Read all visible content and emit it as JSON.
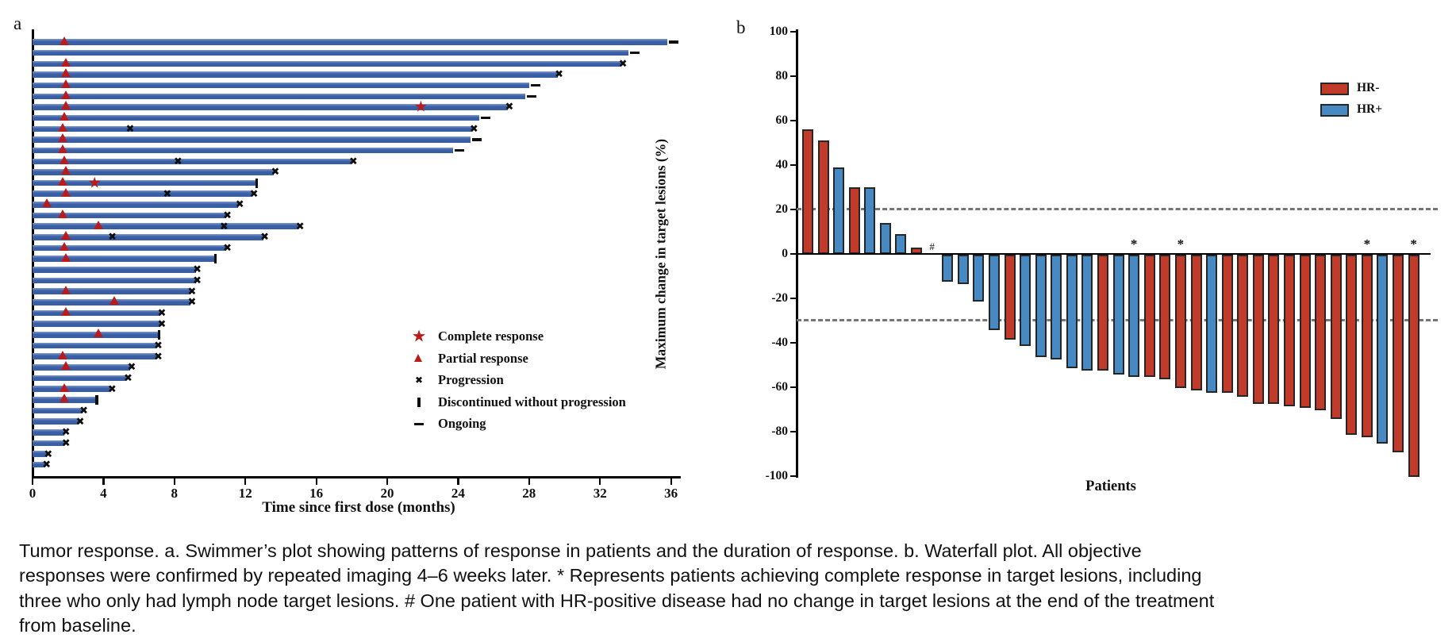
{
  "caption": "Tumor response. a. Swimmer’s plot showing patterns of response in patients and the duration of response. b. Waterfall plot. All objective responses were confirmed by repeated imaging 4–6 weeks later. * Represents patients achieving complete response in target lesions, including three who only had lymph node target lesions. # One patient with HR-positive disease had no change in target lesions at the end of the treatment from baseline.",
  "chart_data": [
    {
      "type": "swimmer",
      "panel": "a",
      "xlabel": "Time since first dose (months)",
      "xticks": [
        0,
        4,
        8,
        12,
        16,
        20,
        24,
        28,
        32,
        36
      ],
      "xlim": [
        0,
        36.5
      ],
      "bar_color": "#3a5fa5",
      "marker_color": "#b91c1c",
      "legend": [
        {
          "marker": "star",
          "label": "Complete response"
        },
        {
          "marker": "triangle",
          "label": "Partial response"
        },
        {
          "marker": "x",
          "label": "Progression"
        },
        {
          "marker": "bar",
          "label": "Discontinued without progression"
        },
        {
          "marker": "dash",
          "label": "Ongoing"
        }
      ],
      "patients": [
        {
          "end": 35.8,
          "marker": "ongoing",
          "pr": 1.8
        },
        {
          "end": 33.6,
          "marker": "ongoing"
        },
        {
          "end": 33.2,
          "marker": "progression",
          "pr": 1.9
        },
        {
          "end": 29.6,
          "marker": "progression",
          "pr": 1.9
        },
        {
          "end": 28.0,
          "marker": "ongoing",
          "pr": 1.9
        },
        {
          "end": 27.8,
          "marker": "ongoing",
          "pr": 1.9
        },
        {
          "end": 26.8,
          "marker": "progression",
          "pr": 1.9,
          "cr": 21.9
        },
        {
          "end": 25.2,
          "marker": "ongoing",
          "pr": 1.8
        },
        {
          "end": 24.8,
          "marker": "progression",
          "pr": 1.7,
          "mid_x": [
            5.5
          ]
        },
        {
          "end": 24.7,
          "marker": "ongoing",
          "pr": 1.7
        },
        {
          "end": 23.7,
          "marker": "ongoing",
          "pr": 1.7
        },
        {
          "end": 18.0,
          "marker": "progression",
          "pr": 1.8,
          "mid_x": [
            8.2
          ]
        },
        {
          "end": 13.6,
          "marker": "progression",
          "pr": 1.9
        },
        {
          "end": 12.6,
          "marker": "discontinued",
          "pr": 1.7,
          "cr": 3.5
        },
        {
          "end": 12.4,
          "marker": "progression",
          "pr": 1.9,
          "mid_x": [
            7.6
          ]
        },
        {
          "end": 11.6,
          "marker": "progression",
          "pr": 0.8
        },
        {
          "end": 10.9,
          "marker": "progression",
          "pr": 1.7
        },
        {
          "end": 15.0,
          "marker": "progression",
          "pr": 3.7,
          "mid_x": [
            10.8
          ]
        },
        {
          "end": 13.0,
          "marker": "progression",
          "pr": 1.9,
          "mid_x": [
            4.5
          ]
        },
        {
          "end": 10.9,
          "marker": "progression",
          "pr": 1.8
        },
        {
          "end": 10.3,
          "marker": "discontinued",
          "pr": 1.9
        },
        {
          "end": 9.2,
          "marker": "progression"
        },
        {
          "end": 9.2,
          "marker": "progression"
        },
        {
          "end": 8.9,
          "marker": "progression",
          "pr": 1.9
        },
        {
          "end": 8.9,
          "marker": "progression",
          "pr": 4.6
        },
        {
          "end": 7.2,
          "marker": "progression",
          "pr": 1.9
        },
        {
          "end": 7.2,
          "marker": "progression"
        },
        {
          "end": 7.1,
          "marker": "discontinued",
          "pr": 3.7
        },
        {
          "end": 7.0,
          "marker": "progression"
        },
        {
          "end": 7.0,
          "marker": "progression",
          "pr": 1.7
        },
        {
          "end": 5.5,
          "marker": "progression",
          "pr": 1.9
        },
        {
          "end": 5.3,
          "marker": "progression"
        },
        {
          "end": 4.4,
          "marker": "progression",
          "pr": 1.8
        },
        {
          "end": 3.6,
          "marker": "discontinued",
          "pr": 1.8
        },
        {
          "end": 2.8,
          "marker": "progression"
        },
        {
          "end": 2.6,
          "marker": "progression"
        },
        {
          "end": 1.8,
          "marker": "progression"
        },
        {
          "end": 1.8,
          "marker": "progression"
        },
        {
          "end": 0.8,
          "marker": "progression"
        },
        {
          "end": 0.7,
          "marker": "progression"
        }
      ]
    },
    {
      "type": "waterfall",
      "panel": "b",
      "ylabel": "Maximum change in target lesions (%)",
      "xlabel": "Patients",
      "yticks": [
        100,
        80,
        60,
        40,
        20,
        0,
        -20,
        -40,
        -60,
        -80,
        -100
      ],
      "ylim": [
        -100,
        100
      ],
      "reference_lines": [
        20,
        -30
      ],
      "hr_neg_color": "#c23b2a",
      "hr_pos_color": "#4789c3",
      "legend": [
        {
          "label": "HR-",
          "color": "#c23b2a"
        },
        {
          "label": "HR+",
          "color": "#4789c3"
        }
      ],
      "bars": [
        {
          "value": 56,
          "hr": "HR-"
        },
        {
          "value": 51,
          "hr": "HR-"
        },
        {
          "value": 39,
          "hr": "HR+"
        },
        {
          "value": 30,
          "hr": "HR-"
        },
        {
          "value": 30,
          "hr": "HR+"
        },
        {
          "value": 14,
          "hr": "HR+"
        },
        {
          "value": 9,
          "hr": "HR+"
        },
        {
          "value": 3,
          "hr": "HR-"
        },
        {
          "value": 0,
          "hr": "HR+",
          "hash": true
        },
        {
          "value": -12,
          "hr": "HR+"
        },
        {
          "value": -13,
          "hr": "HR+"
        },
        {
          "value": -21,
          "hr": "HR+"
        },
        {
          "value": -34,
          "hr": "HR+"
        },
        {
          "value": -38,
          "hr": "HR-"
        },
        {
          "value": -41,
          "hr": "HR+"
        },
        {
          "value": -46,
          "hr": "HR+"
        },
        {
          "value": -47,
          "hr": "HR+"
        },
        {
          "value": -51,
          "hr": "HR+"
        },
        {
          "value": -52,
          "hr": "HR+"
        },
        {
          "value": -52,
          "hr": "HR-"
        },
        {
          "value": -54,
          "hr": "HR+"
        },
        {
          "value": -55,
          "hr": "HR+",
          "star": true
        },
        {
          "value": -55,
          "hr": "HR-"
        },
        {
          "value": -56,
          "hr": "HR-"
        },
        {
          "value": -60,
          "hr": "HR-",
          "star": true
        },
        {
          "value": -61,
          "hr": "HR-"
        },
        {
          "value": -62,
          "hr": "HR+"
        },
        {
          "value": -62,
          "hr": "HR-"
        },
        {
          "value": -64,
          "hr": "HR-"
        },
        {
          "value": -67,
          "hr": "HR-"
        },
        {
          "value": -67,
          "hr": "HR-"
        },
        {
          "value": -68,
          "hr": "HR-"
        },
        {
          "value": -69,
          "hr": "HR-"
        },
        {
          "value": -70,
          "hr": "HR-"
        },
        {
          "value": -74,
          "hr": "HR-"
        },
        {
          "value": -81,
          "hr": "HR-"
        },
        {
          "value": -82,
          "hr": "HR-",
          "star": true
        },
        {
          "value": -85,
          "hr": "HR+"
        },
        {
          "value": -89,
          "hr": "HR-"
        },
        {
          "value": -100,
          "hr": "HR-",
          "star": true
        }
      ]
    }
  ]
}
